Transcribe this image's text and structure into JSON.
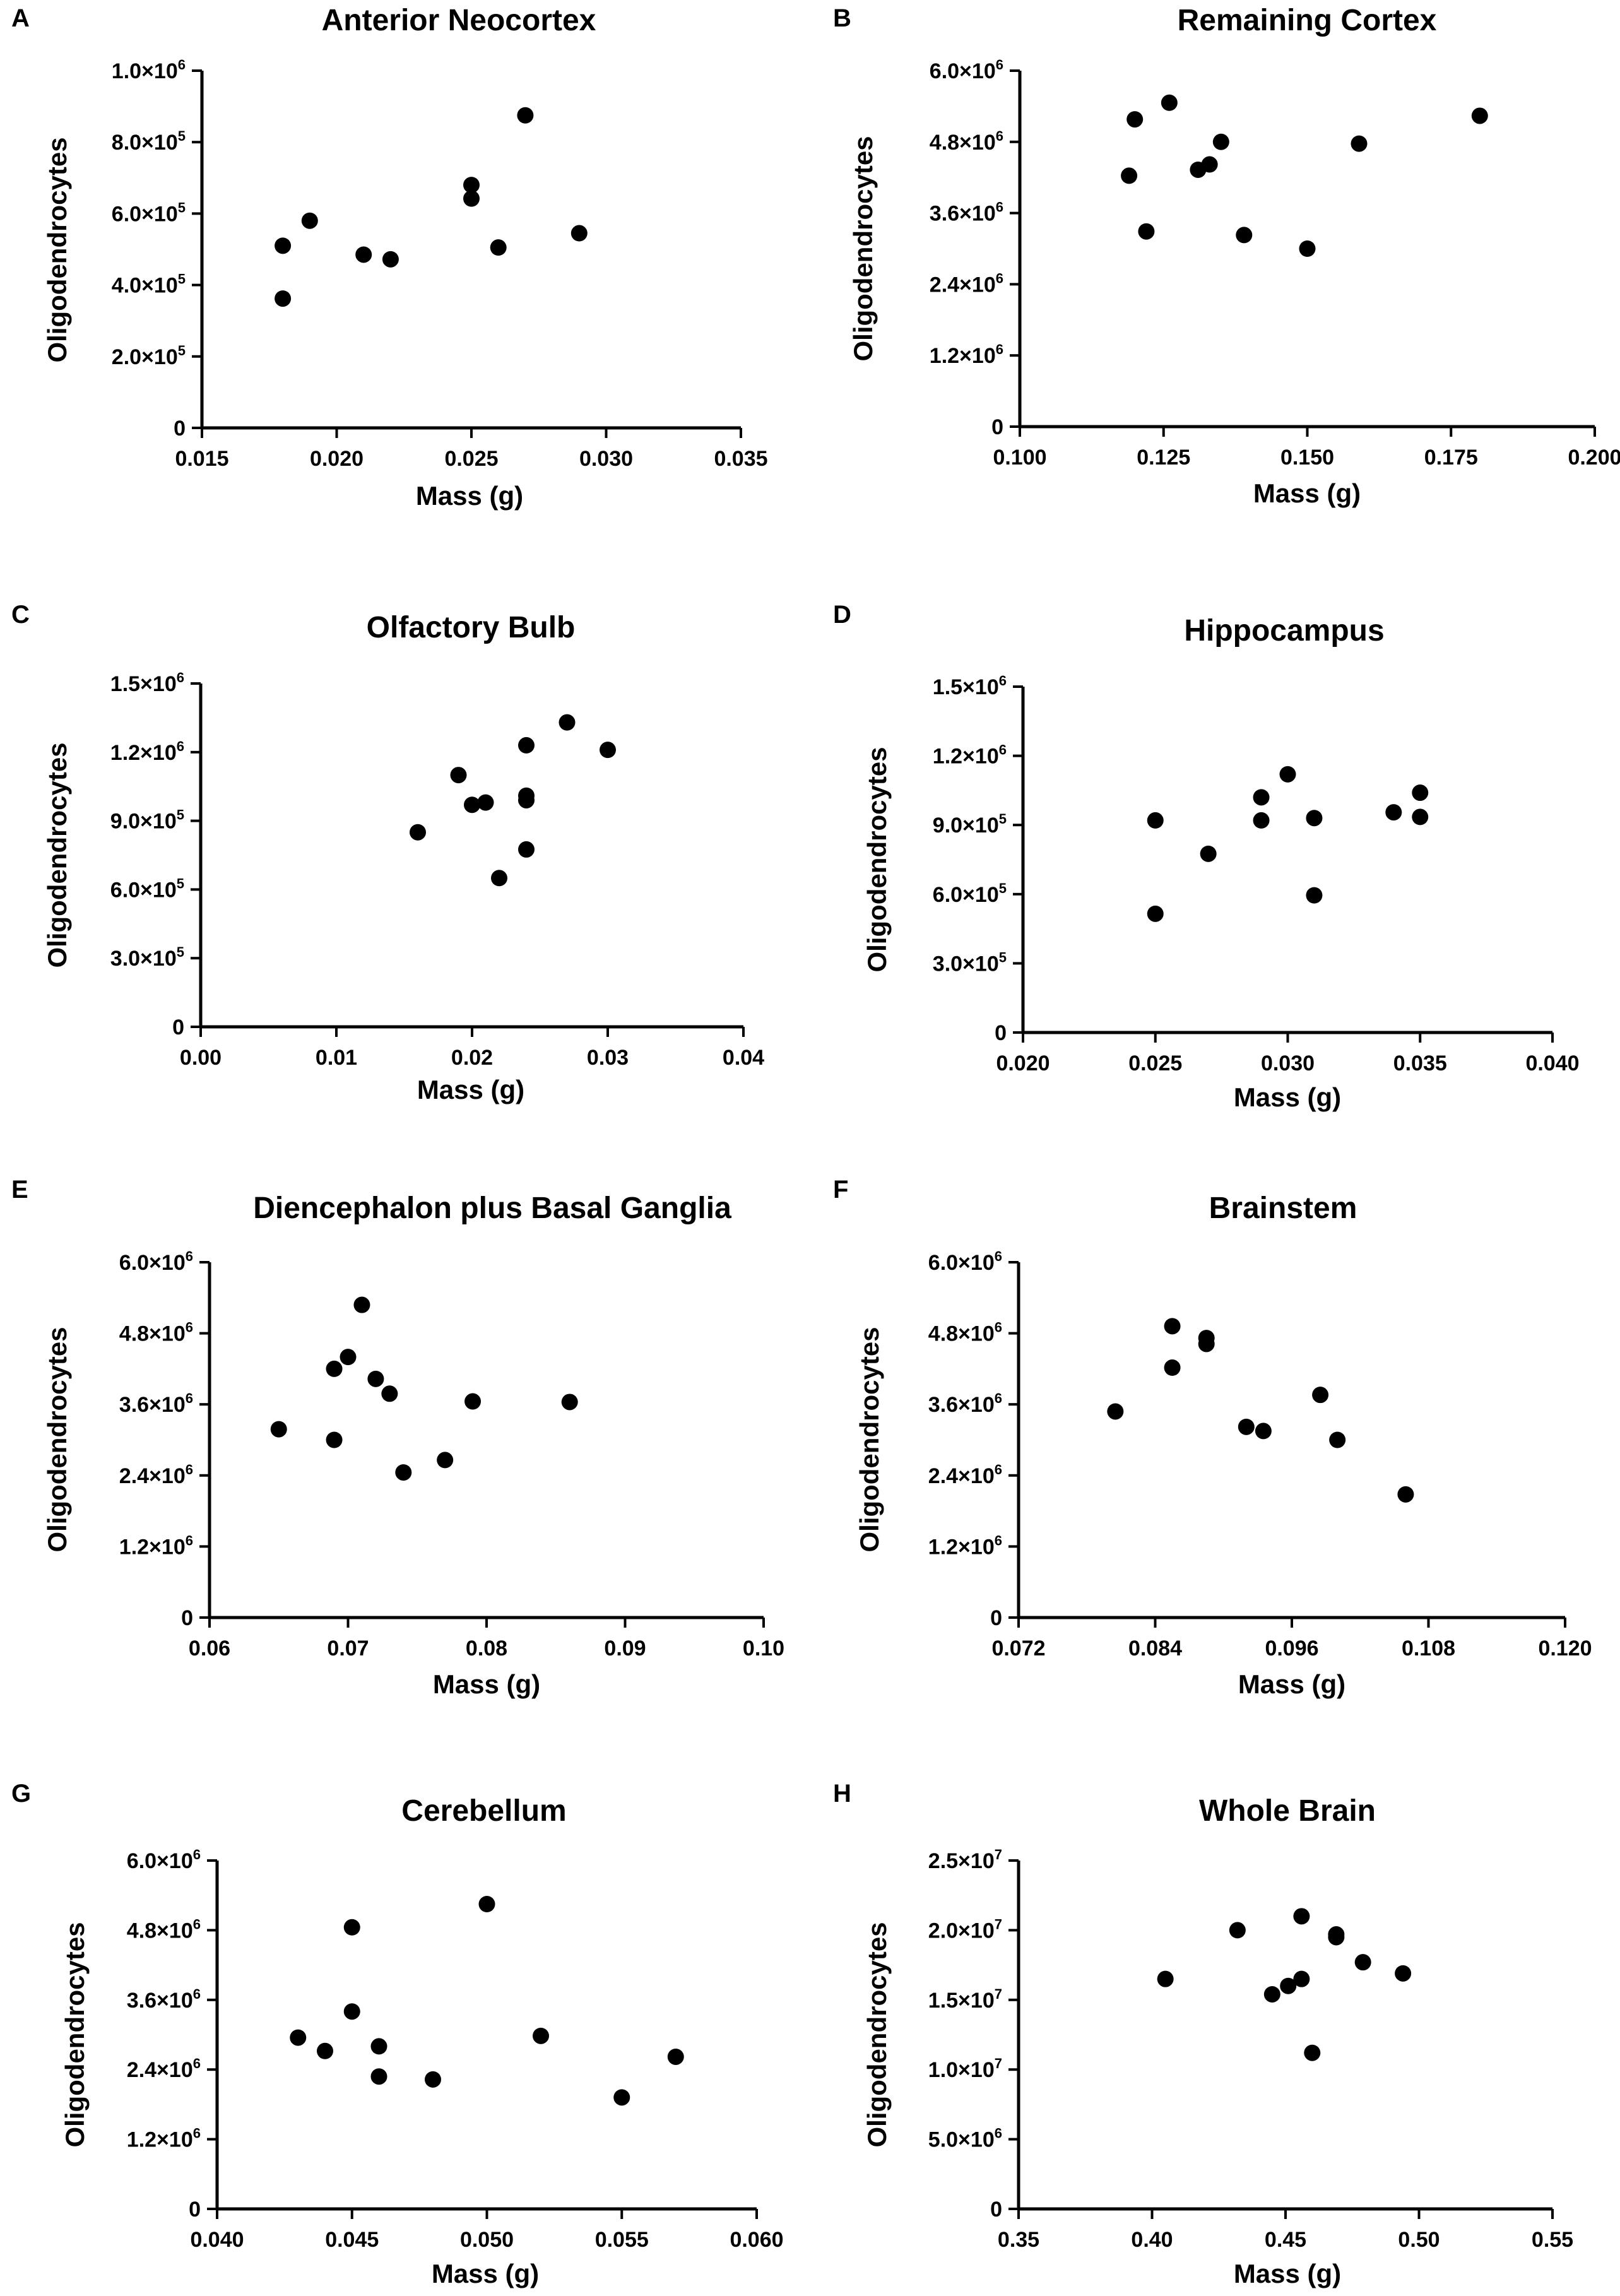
{
  "chart_data": [
    {
      "panel": "A",
      "type": "scatter",
      "title": "Anterior Neocortex",
      "xlabel": "Mass (g)",
      "ylabel": "Oligodendrocytes",
      "xlim": [
        0.015,
        0.035
      ],
      "ylim": [
        0,
        1000000
      ],
      "xticks": [
        "0.015",
        "0.020",
        "0.025",
        "0.030",
        "0.035"
      ],
      "yticks": [
        {
          "m": "0",
          "e": ""
        },
        {
          "m": "2.0×10",
          "e": "5"
        },
        {
          "m": "4.0×10",
          "e": "5"
        },
        {
          "m": "6.0×10",
          "e": "5"
        },
        {
          "m": "8.0×10",
          "e": "5"
        },
        {
          "m": "1.0×10",
          "e": "6"
        }
      ],
      "points": [
        [
          0.018,
          510000
        ],
        [
          0.018,
          362000
        ],
        [
          0.019,
          580000
        ],
        [
          0.021,
          485000
        ],
        [
          0.022,
          472000
        ],
        [
          0.025,
          680000
        ],
        [
          0.025,
          642000
        ],
        [
          0.026,
          505000
        ],
        [
          0.027,
          875000
        ],
        [
          0.029,
          545000
        ]
      ]
    },
    {
      "panel": "B",
      "type": "scatter",
      "title": "Remaining Cortex",
      "xlabel": "Mass (g)",
      "ylabel": "Oligodendrocytes",
      "xlim": [
        0.1,
        0.2
      ],
      "ylim": [
        0,
        6000000
      ],
      "xticks": [
        "0.100",
        "0.125",
        "0.150",
        "0.175",
        "0.200"
      ],
      "yticks": [
        {
          "m": "0",
          "e": ""
        },
        {
          "m": "1.2×10",
          "e": "6"
        },
        {
          "m": "2.4×10",
          "e": "6"
        },
        {
          "m": "3.6×10",
          "e": "6"
        },
        {
          "m": "4.8×10",
          "e": "6"
        },
        {
          "m": "6.0×10",
          "e": "6"
        }
      ],
      "points": [
        [
          0.119,
          4230000
        ],
        [
          0.12,
          5180000
        ],
        [
          0.122,
          3290000
        ],
        [
          0.126,
          5460000
        ],
        [
          0.131,
          4330000
        ],
        [
          0.133,
          4420000
        ],
        [
          0.135,
          4800000
        ],
        [
          0.139,
          3230000
        ],
        [
          0.15,
          3000000
        ],
        [
          0.159,
          4770000
        ],
        [
          0.18,
          5240000
        ]
      ]
    },
    {
      "panel": "C",
      "type": "scatter",
      "title": "Olfactory Bulb",
      "xlabel": "Mass (g)",
      "ylabel": "Oligodendrocytes",
      "xlim": [
        0.0,
        0.04
      ],
      "ylim": [
        0,
        1500000
      ],
      "xticks": [
        "0.00",
        "0.01",
        "0.02",
        "0.03",
        "0.04"
      ],
      "yticks": [
        {
          "m": "0",
          "e": ""
        },
        {
          "m": "3.0×10",
          "e": "5"
        },
        {
          "m": "6.0×10",
          "e": "5"
        },
        {
          "m": "9.0×10",
          "e": "5"
        },
        {
          "m": "1.2×10",
          "e": "6"
        },
        {
          "m": "1.5×10",
          "e": "6"
        }
      ],
      "points": [
        [
          0.016,
          850000
        ],
        [
          0.019,
          1100000
        ],
        [
          0.02,
          970000
        ],
        [
          0.021,
          980000
        ],
        [
          0.022,
          650000
        ],
        [
          0.024,
          1230000
        ],
        [
          0.024,
          1010000
        ],
        [
          0.024,
          990000
        ],
        [
          0.024,
          775000
        ],
        [
          0.027,
          1330000
        ],
        [
          0.03,
          1210000
        ]
      ]
    },
    {
      "panel": "D",
      "type": "scatter",
      "title": "Hippocampus",
      "xlabel": "Mass (g)",
      "ylabel": "Oligodendrocytes",
      "xlim": [
        0.02,
        0.04
      ],
      "ylim": [
        0,
        1500000
      ],
      "xticks": [
        "0.020",
        "0.025",
        "0.030",
        "0.035",
        "0.040"
      ],
      "yticks": [
        {
          "m": "0",
          "e": ""
        },
        {
          "m": "3.0×10",
          "e": "5"
        },
        {
          "m": "6.0×10",
          "e": "5"
        },
        {
          "m": "9.0×10",
          "e": "5"
        },
        {
          "m": "1.2×10",
          "e": "6"
        },
        {
          "m": "1.5×10",
          "e": "6"
        }
      ],
      "points": [
        [
          0.025,
          920000
        ],
        [
          0.025,
          515000
        ],
        [
          0.027,
          775000
        ],
        [
          0.029,
          1020000
        ],
        [
          0.029,
          920000
        ],
        [
          0.03,
          1120000
        ],
        [
          0.031,
          930000
        ],
        [
          0.031,
          595000
        ],
        [
          0.034,
          955000
        ],
        [
          0.035,
          1040000
        ],
        [
          0.035,
          935000
        ]
      ]
    },
    {
      "panel": "E",
      "type": "scatter",
      "title": "Diencephalon plus Basal Ganglia",
      "xlabel": "Mass (g)",
      "ylabel": "Oligodendrocytes",
      "xlim": [
        0.06,
        0.1
      ],
      "ylim": [
        0,
        6000000
      ],
      "xticks": [
        "0.06",
        "0.07",
        "0.08",
        "0.09",
        "0.10"
      ],
      "yticks": [
        {
          "m": "0",
          "e": ""
        },
        {
          "m": "1.2×10",
          "e": "6"
        },
        {
          "m": "2.4×10",
          "e": "6"
        },
        {
          "m": "3.6×10",
          "e": "6"
        },
        {
          "m": "4.8×10",
          "e": "6"
        },
        {
          "m": "6.0×10",
          "e": "6"
        }
      ],
      "points": [
        [
          0.065,
          3180000
        ],
        [
          0.069,
          4200000
        ],
        [
          0.069,
          3000000
        ],
        [
          0.07,
          4400000
        ],
        [
          0.071,
          5280000
        ],
        [
          0.072,
          4030000
        ],
        [
          0.073,
          3780000
        ],
        [
          0.074,
          2450000
        ],
        [
          0.077,
          2660000
        ],
        [
          0.079,
          3650000
        ],
        [
          0.086,
          3640000
        ]
      ]
    },
    {
      "panel": "F",
      "type": "scatter",
      "title": "Brainstem",
      "xlabel": "Mass (g)",
      "ylabel": "Oligodendrocytes",
      "xlim": [
        0.072,
        0.12
      ],
      "ylim": [
        0,
        6000000
      ],
      "xticks": [
        "0.072",
        "0.084",
        "0.096",
        "0.108",
        "0.120"
      ],
      "yticks": [
        {
          "m": "0",
          "e": ""
        },
        {
          "m": "1.2×10",
          "e": "6"
        },
        {
          "m": "2.4×10",
          "e": "6"
        },
        {
          "m": "3.6×10",
          "e": "6"
        },
        {
          "m": "4.8×10",
          "e": "6"
        },
        {
          "m": "6.0×10",
          "e": "6"
        }
      ],
      "points": [
        [
          0.0805,
          3480000
        ],
        [
          0.0855,
          4920000
        ],
        [
          0.0855,
          4220000
        ],
        [
          0.0885,
          4720000
        ],
        [
          0.0885,
          4620000
        ],
        [
          0.092,
          3220000
        ],
        [
          0.0935,
          3150000
        ],
        [
          0.0985,
          3760000
        ],
        [
          0.1,
          3000000
        ],
        [
          0.106,
          2080000
        ]
      ]
    },
    {
      "panel": "G",
      "type": "scatter",
      "title": "Cerebellum",
      "xlabel": "Mass (g)",
      "ylabel": "Oligodendrocytes",
      "xlim": [
        0.04,
        0.06
      ],
      "ylim": [
        0,
        6000000
      ],
      "xticks": [
        "0.040",
        "0.045",
        "0.050",
        "0.055",
        "0.060"
      ],
      "yticks": [
        {
          "m": "0",
          "e": ""
        },
        {
          "m": "1.2×10",
          "e": "6"
        },
        {
          "m": "2.4×10",
          "e": "6"
        },
        {
          "m": "3.6×10",
          "e": "6"
        },
        {
          "m": "4.8×10",
          "e": "6"
        },
        {
          "m": "6.0×10",
          "e": "6"
        }
      ],
      "points": [
        [
          0.043,
          2950000
        ],
        [
          0.044,
          2720000
        ],
        [
          0.045,
          4850000
        ],
        [
          0.045,
          3400000
        ],
        [
          0.046,
          2800000
        ],
        [
          0.046,
          2280000
        ],
        [
          0.048,
          2230000
        ],
        [
          0.05,
          5250000
        ],
        [
          0.052,
          2980000
        ],
        [
          0.055,
          1920000
        ],
        [
          0.057,
          2620000
        ]
      ]
    },
    {
      "panel": "H",
      "type": "scatter",
      "title": "Whole Brain",
      "xlabel": "Mass (g)",
      "ylabel": "Oligodendrocytes",
      "xlim": [
        0.35,
        0.55
      ],
      "ylim": [
        0,
        25000000
      ],
      "xticks": [
        "0.35",
        "0.40",
        "0.45",
        "0.50",
        "0.55"
      ],
      "yticks": [
        {
          "m": "0",
          "e": ""
        },
        {
          "m": "5.0×10",
          "e": "6"
        },
        {
          "m": "1.0×10",
          "e": "7"
        },
        {
          "m": "1.5×10",
          "e": "7"
        },
        {
          "m": "2.0×10",
          "e": "7"
        },
        {
          "m": "2.5×10",
          "e": "7"
        }
      ],
      "points": [
        [
          0.405,
          16500000
        ],
        [
          0.432,
          20000000
        ],
        [
          0.445,
          15400000
        ],
        [
          0.451,
          16000000
        ],
        [
          0.456,
          21000000
        ],
        [
          0.456,
          16500000
        ],
        [
          0.46,
          11200000
        ],
        [
          0.469,
          19700000
        ],
        [
          0.469,
          19500000
        ],
        [
          0.479,
          17700000
        ],
        [
          0.494,
          16900000
        ]
      ]
    }
  ]
}
